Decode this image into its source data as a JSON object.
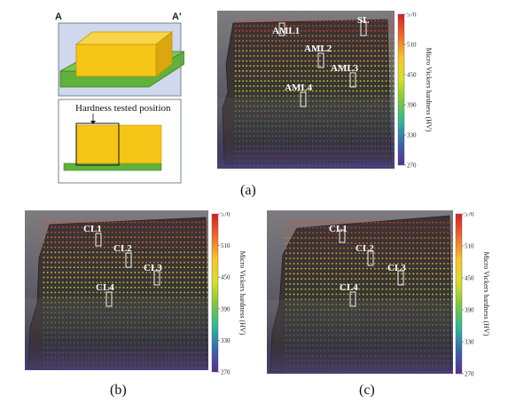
{
  "schematic": {
    "corner_left": "A",
    "corner_right": "A'",
    "caption": "Hardness tested position",
    "colors": {
      "block": "#f5c518",
      "block_edge": "#c99400",
      "plate": "#5fb23a",
      "frame_bg": "#cfd8ec"
    }
  },
  "colorbar": {
    "ticks": [
      "570",
      "510",
      "450",
      "390",
      "330",
      "270"
    ],
    "title": "Micro Vickers hardness (HV)",
    "colors": [
      "#d71f26",
      "#ef6a2a",
      "#f7c52c",
      "#d8df2a",
      "#7ec73e",
      "#2eb89a",
      "#3a64b0",
      "#5a2e8a"
    ]
  },
  "panels": [
    {
      "id": "a",
      "label": "(a)",
      "points": [
        "AML1",
        "SL",
        "AML2",
        "AML3",
        "AML4"
      ]
    },
    {
      "id": "b",
      "label": "(b)",
      "points": [
        "CL1",
        "CL2",
        "CL3",
        "CL4"
      ]
    },
    {
      "id": "c",
      "label": "(c)",
      "points": [
        "CL1",
        "CL2",
        "CL3",
        "CL4"
      ]
    }
  ]
}
